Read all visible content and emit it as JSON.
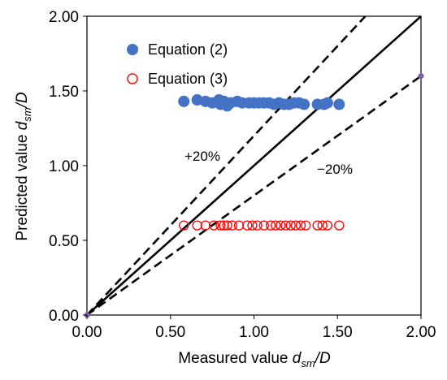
{
  "chart_data": {
    "type": "scatter",
    "xlim": [
      0,
      2
    ],
    "ylim": [
      0,
      2
    ],
    "x_ticks": [
      "0.00",
      "0.50",
      "1.00",
      "1.50",
      "2.00"
    ],
    "y_ticks": [
      "0.00",
      "0.50",
      "1.00",
      "1.50",
      "2.00"
    ],
    "xlabel": {
      "prefix": "Measured value ",
      "var": "d",
      "sub": "sm",
      "suffix": "/D"
    },
    "ylabel": {
      "prefix": "Predicted value ",
      "var": "d",
      "sub": "sm",
      "suffix": "/D"
    },
    "grid": false,
    "legend_position": "upper-left inside plot",
    "annotations": [
      "+20%",
      "−20%"
    ],
    "reference_lines": [
      {
        "name": "1:1",
        "slope": 1.0,
        "style": "solid",
        "color": "#000000"
      },
      {
        "name": "+20%",
        "slope": 1.2,
        "style": "dashed",
        "color": "#000000"
      },
      {
        "name": "-20%",
        "slope": 0.8,
        "style": "dashed",
        "color": "#000000"
      }
    ],
    "series": [
      {
        "name": "Equation (2)",
        "marker": "filled-circle",
        "color": "#4472C4",
        "points": [
          [
            0.58,
            1.43
          ],
          [
            0.66,
            1.44
          ],
          [
            0.71,
            1.43
          ],
          [
            0.75,
            1.42
          ],
          [
            0.79,
            1.44
          ],
          [
            0.8,
            1.41
          ],
          [
            0.82,
            1.43
          ],
          [
            0.84,
            1.4
          ],
          [
            0.86,
            1.42
          ],
          [
            0.9,
            1.43
          ],
          [
            0.93,
            1.42
          ],
          [
            0.97,
            1.42
          ],
          [
            1.0,
            1.42
          ],
          [
            1.03,
            1.42
          ],
          [
            1.06,
            1.42
          ],
          [
            1.09,
            1.42
          ],
          [
            1.12,
            1.41
          ],
          [
            1.15,
            1.42
          ],
          [
            1.18,
            1.41
          ],
          [
            1.21,
            1.41
          ],
          [
            1.24,
            1.42
          ],
          [
            1.27,
            1.42
          ],
          [
            1.3,
            1.41
          ],
          [
            1.38,
            1.41
          ],
          [
            1.42,
            1.41
          ],
          [
            1.44,
            1.42
          ],
          [
            1.51,
            1.41
          ]
        ]
      },
      {
        "name": "Equation (3)",
        "marker": "open-circle",
        "color": "#FF0000",
        "points": [
          [
            0.58,
            0.6
          ],
          [
            0.66,
            0.6
          ],
          [
            0.71,
            0.6
          ],
          [
            0.76,
            0.6
          ],
          [
            0.8,
            0.6
          ],
          [
            0.82,
            0.6
          ],
          [
            0.84,
            0.6
          ],
          [
            0.87,
            0.6
          ],
          [
            0.91,
            0.6
          ],
          [
            0.96,
            0.6
          ],
          [
            0.99,
            0.6
          ],
          [
            1.02,
            0.6
          ],
          [
            1.06,
            0.6
          ],
          [
            1.1,
            0.6
          ],
          [
            1.13,
            0.6
          ],
          [
            1.16,
            0.6
          ],
          [
            1.19,
            0.6
          ],
          [
            1.22,
            0.6
          ],
          [
            1.25,
            0.6
          ],
          [
            1.28,
            0.6
          ],
          [
            1.31,
            0.6
          ],
          [
            1.38,
            0.6
          ],
          [
            1.41,
            0.6
          ],
          [
            1.44,
            0.6
          ],
          [
            1.51,
            0.6
          ]
        ]
      },
      {
        "name": "",
        "marker": "small-filled-circle",
        "color": "#7F60A8",
        "points": [
          [
            0,
            0
          ],
          [
            2,
            1.6
          ]
        ]
      }
    ]
  }
}
